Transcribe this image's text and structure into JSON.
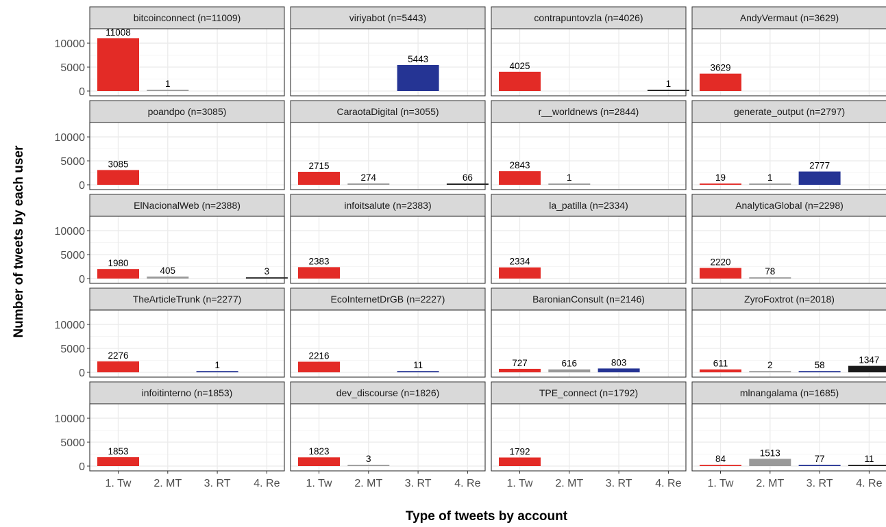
{
  "chart_data": {
    "type": "bar",
    "xlabel": "Type of tweets by account",
    "ylabel": "Number of tweets by each user",
    "categories": [
      "1. Tw",
      "2. MT",
      "3. RT",
      "4. Re"
    ],
    "y_ticks": [
      0,
      5000,
      10000
    ],
    "ylim": [
      0,
      11009
    ],
    "grid": true,
    "category_colors": [
      "#e32b26",
      "#999999",
      "#253494",
      "#1a1a1a"
    ],
    "panels": [
      {
        "title": "bitcoinconnect (n=11009)",
        "values": [
          11008,
          1,
          null,
          null
        ]
      },
      {
        "title": "viriyabot (n=5443)",
        "values": [
          null,
          null,
          5443,
          null
        ]
      },
      {
        "title": "contrapuntovzla (n=4026)",
        "values": [
          4025,
          null,
          null,
          1
        ]
      },
      {
        "title": "AndyVermaut (n=3629)",
        "values": [
          3629,
          null,
          null,
          null
        ]
      },
      {
        "title": "poandpo (n=3085)",
        "values": [
          3085,
          null,
          null,
          null
        ]
      },
      {
        "title": "CaraotaDigital (n=3055)",
        "values": [
          2715,
          274,
          null,
          66
        ]
      },
      {
        "title": "r__worldnews (n=2844)",
        "values": [
          2843,
          1,
          null,
          null
        ]
      },
      {
        "title": "generate_output (n=2797)",
        "values": [
          19,
          1,
          2777,
          null
        ]
      },
      {
        "title": "ElNacionalWeb (n=2388)",
        "values": [
          1980,
          405,
          null,
          3
        ]
      },
      {
        "title": "infoitsalute (n=2383)",
        "values": [
          2383,
          null,
          null,
          null
        ]
      },
      {
        "title": "la_patilla (n=2334)",
        "values": [
          2334,
          null,
          null,
          null
        ]
      },
      {
        "title": "AnalyticaGlobal (n=2298)",
        "values": [
          2220,
          78,
          null,
          null
        ]
      },
      {
        "title": "TheArticleTrunk (n=2277)",
        "values": [
          2276,
          null,
          1,
          null
        ]
      },
      {
        "title": "EcoInternetDrGB (n=2227)",
        "values": [
          2216,
          null,
          11,
          null
        ]
      },
      {
        "title": "BaronianConsult (n=2146)",
        "values": [
          727,
          616,
          803,
          null
        ]
      },
      {
        "title": "ZyroFoxtrot (n=2018)",
        "values": [
          611,
          2,
          58,
          1347
        ]
      },
      {
        "title": "infoitinterno (n=1853)",
        "values": [
          1853,
          null,
          null,
          null
        ]
      },
      {
        "title": "dev_discourse (n=1826)",
        "values": [
          1823,
          3,
          null,
          null
        ]
      },
      {
        "title": "TPE_connect (n=1792)",
        "values": [
          1792,
          null,
          null,
          null
        ]
      },
      {
        "title": "mlnangalama (n=1685)",
        "values": [
          84,
          1513,
          77,
          11
        ]
      }
    ]
  }
}
